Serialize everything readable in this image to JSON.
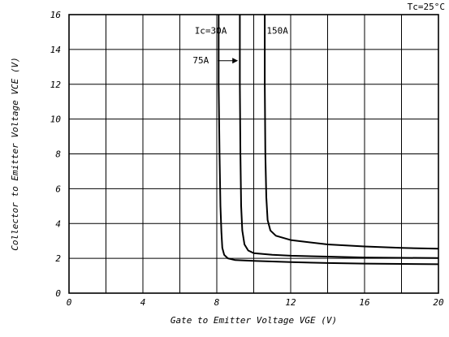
{
  "chart_data": {
    "type": "line",
    "title": "",
    "condition": "Tc=25°C",
    "xlabel": "Gate to Emitter Voltage VGE (V)",
    "ylabel": "Collector to Emitter Voltage VCE (V)",
    "xlim": [
      0,
      20
    ],
    "ylim": [
      0,
      16
    ],
    "xticks": [
      0,
      4,
      8,
      12,
      16,
      20
    ],
    "yticks": [
      0,
      2,
      4,
      6,
      8,
      10,
      12,
      14,
      16
    ],
    "x_gridlines": [
      0,
      2,
      4,
      6,
      8,
      10,
      12,
      14,
      16,
      18,
      20
    ],
    "y_gridlines": [
      0,
      2,
      4,
      6,
      8,
      10,
      12,
      14,
      16
    ],
    "grid": true,
    "series": [
      {
        "name": "Ic=30A",
        "points": [
          [
            8.1,
            16
          ],
          [
            8.1,
            12
          ],
          [
            8.15,
            8
          ],
          [
            8.2,
            5
          ],
          [
            8.25,
            3.5
          ],
          [
            8.3,
            2.6
          ],
          [
            8.4,
            2.2
          ],
          [
            8.6,
            2.0
          ],
          [
            9,
            1.9
          ],
          [
            10,
            1.85
          ],
          [
            12,
            1.78
          ],
          [
            14,
            1.73
          ],
          [
            16,
            1.7
          ],
          [
            18,
            1.68
          ],
          [
            20,
            1.66
          ]
        ]
      },
      {
        "name": "75A",
        "points": [
          [
            9.25,
            16
          ],
          [
            9.25,
            12
          ],
          [
            9.28,
            8
          ],
          [
            9.32,
            5
          ],
          [
            9.38,
            3.6
          ],
          [
            9.5,
            2.8
          ],
          [
            9.7,
            2.45
          ],
          [
            10,
            2.3
          ],
          [
            11,
            2.2
          ],
          [
            12,
            2.15
          ],
          [
            14,
            2.1
          ],
          [
            16,
            2.05
          ],
          [
            18,
            2.03
          ],
          [
            20,
            2.02
          ]
        ]
      },
      {
        "name": "150A",
        "points": [
          [
            10.6,
            16
          ],
          [
            10.6,
            12
          ],
          [
            10.63,
            8
          ],
          [
            10.68,
            5.5
          ],
          [
            10.75,
            4.2
          ],
          [
            10.9,
            3.6
          ],
          [
            11.2,
            3.3
          ],
          [
            12,
            3.05
          ],
          [
            14,
            2.8
          ],
          [
            16,
            2.68
          ],
          [
            18,
            2.6
          ],
          [
            20,
            2.55
          ]
        ]
      }
    ],
    "annotations": [
      {
        "text": "Ic=30A",
        "x": 6.8,
        "y": 14.9
      },
      {
        "text": "150A",
        "x": 10.7,
        "y": 14.9
      },
      {
        "text": "75A",
        "x": 6.7,
        "y": 13.2
      }
    ]
  }
}
